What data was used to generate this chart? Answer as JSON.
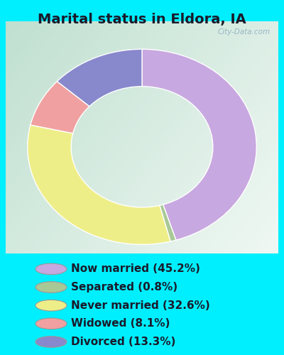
{
  "title": "Marital status in Eldora, IA",
  "segments": [
    {
      "label": "Now married (45.2%)",
      "value": 45.2,
      "color": "#C8A8E0"
    },
    {
      "label": "Separated (0.8%)",
      "value": 0.8,
      "color": "#A8C896"
    },
    {
      "label": "Never married (32.6%)",
      "value": 32.6,
      "color": "#EEEE88"
    },
    {
      "label": "Widowed (8.1%)",
      "value": 8.1,
      "color": "#F0A0A0"
    },
    {
      "label": "Divorced (13.3%)",
      "value": 13.3,
      "color": "#8888CC"
    }
  ],
  "outer_bg": "#00EFFF",
  "chart_bg_colors": [
    "#C0DDD0",
    "#E8F5EE",
    "#F0F8F4",
    "#FFFFFF"
  ],
  "watermark": "City-Data.com",
  "title_fontsize": 14,
  "legend_fontsize": 11
}
